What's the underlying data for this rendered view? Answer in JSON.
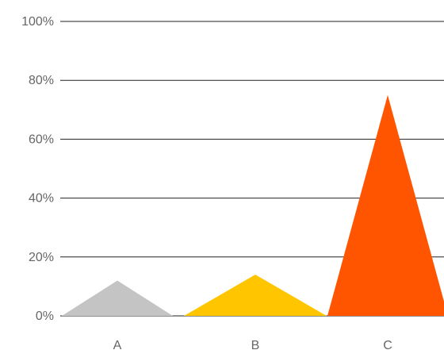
{
  "chart_data": {
    "type": "area",
    "title": "",
    "xlabel": "",
    "ylabel": "",
    "categories": [
      "A",
      "B",
      "C"
    ],
    "values": [
      12,
      14,
      75
    ],
    "ylim": [
      0,
      100
    ],
    "y_ticks": [
      "0%",
      "20%",
      "40%",
      "60%",
      "80%",
      "100%"
    ],
    "grid": true,
    "legend": "none",
    "colors": [
      "#c4c4c4",
      "#ffc600",
      "#ff5500"
    ]
  }
}
